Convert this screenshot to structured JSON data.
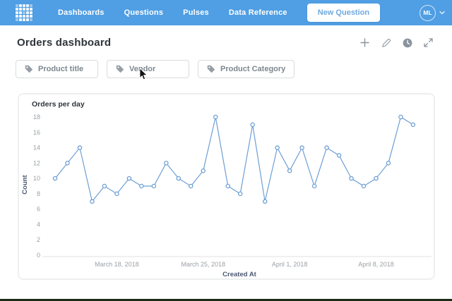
{
  "nav": {
    "items": [
      {
        "label": "Dashboards"
      },
      {
        "label": "Questions"
      },
      {
        "label": "Pulses"
      },
      {
        "label": "Data Reference"
      }
    ],
    "new_question_label": "New Question",
    "avatar_initials": "ML",
    "brand_color": "#509ee3"
  },
  "header": {
    "title": "Orders dashboard",
    "icons": [
      "plus-icon",
      "pencil-icon",
      "history-icon",
      "fullscreen-icon"
    ]
  },
  "filters": [
    {
      "icon": "tag-icon",
      "label": "Product title"
    },
    {
      "icon": "tag-icon",
      "label": "Vendor"
    },
    {
      "icon": "tag-icon",
      "label": "Product Category"
    }
  ],
  "chart_data": {
    "type": "line",
    "title": "Orders per day",
    "xlabel": "Created At",
    "ylabel": "Count",
    "x": [
      "2018-03-13",
      "2018-03-14",
      "2018-03-15",
      "2018-03-16",
      "2018-03-17",
      "2018-03-18",
      "2018-03-19",
      "2018-03-20",
      "2018-03-21",
      "2018-03-22",
      "2018-03-23",
      "2018-03-24",
      "2018-03-25",
      "2018-03-26",
      "2018-03-27",
      "2018-03-28",
      "2018-03-29",
      "2018-03-30",
      "2018-03-31",
      "2018-04-01",
      "2018-04-02",
      "2018-04-03",
      "2018-04-04",
      "2018-04-05",
      "2018-04-06",
      "2018-04-07",
      "2018-04-08",
      "2018-04-09",
      "2018-04-10",
      "2018-04-11"
    ],
    "values": [
      10,
      12,
      14,
      7,
      9,
      8,
      10,
      9,
      9,
      12,
      10,
      9,
      11,
      18,
      9,
      8,
      17,
      7,
      14,
      11,
      14,
      9,
      14,
      13,
      10,
      9,
      10,
      12,
      18,
      17
    ],
    "ylim": [
      0,
      18
    ],
    "yticks": [
      0,
      2,
      4,
      6,
      8,
      10,
      12,
      14,
      16,
      18
    ],
    "xticks": [
      {
        "index": 5,
        "label": "March 18, 2018"
      },
      {
        "index": 12,
        "label": "March 25, 2018"
      },
      {
        "index": 19,
        "label": "April 1, 2018"
      },
      {
        "index": 26,
        "label": "April 8, 2018"
      }
    ],
    "grid": false,
    "legend": "none",
    "line_color": "#6e9fd4",
    "marker": "open-circle"
  }
}
